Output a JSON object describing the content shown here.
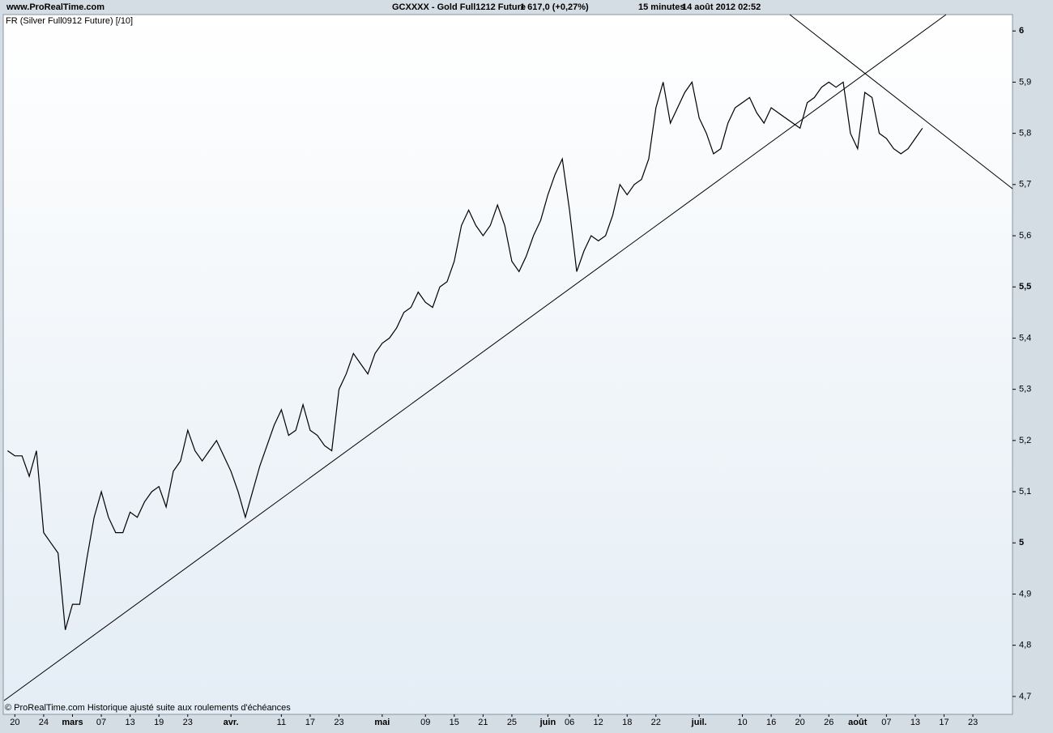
{
  "header": {
    "site": "www.ProRealTime.com",
    "instrument": "GCXXXX - Gold Full1212 Future",
    "quote": "1 617,0 (+0,27%)",
    "interval": "15 minutes",
    "datetime": "14 août 2012 02:52"
  },
  "chart_data": {
    "type": "line",
    "subtitle": "FR (Silver Full0912 Future) [/10]",
    "footnote": "© ProRealTime.com Historique ajusté suite aux roulements d'échéances",
    "categories": [
      null,
      "20",
      null,
      null,
      null,
      "24",
      null,
      null,
      null,
      "mars",
      null,
      null,
      null,
      "07",
      null,
      null,
      null,
      "13",
      null,
      null,
      null,
      "19",
      null,
      null,
      null,
      "23",
      null,
      null,
      null,
      null,
      null,
      "avr.",
      null,
      null,
      null,
      null,
      null,
      null,
      "11",
      null,
      null,
      null,
      "17",
      null,
      null,
      null,
      "23",
      null,
      null,
      null,
      null,
      null,
      "mai",
      null,
      null,
      null,
      null,
      null,
      "09",
      null,
      null,
      null,
      "15",
      null,
      null,
      null,
      "21",
      null,
      null,
      null,
      "25",
      null,
      null,
      null,
      null,
      "juin",
      null,
      null,
      "06",
      null,
      null,
      null,
      "12",
      null,
      null,
      null,
      "18",
      null,
      null,
      null,
      "22",
      null,
      null,
      null,
      null,
      null,
      "juil.",
      null,
      null,
      null,
      null,
      null,
      "10",
      null,
      null,
      null,
      "16",
      null,
      null,
      null,
      "20",
      null,
      null,
      null,
      "26",
      null,
      null,
      null,
      "août",
      null,
      null,
      null,
      "07",
      null,
      null,
      null,
      "13",
      null,
      null,
      null,
      "17",
      null,
      null,
      null,
      "23",
      null,
      null,
      null,
      null,
      null
    ],
    "series": [
      {
        "color": "#000000",
        "values": [
          5.18,
          5.17,
          5.17,
          5.13,
          5.18,
          5.02,
          5.0,
          4.98,
          4.83,
          4.88,
          4.88,
          4.97,
          5.05,
          5.1,
          5.05,
          5.02,
          5.02,
          5.06,
          5.05,
          5.08,
          5.1,
          5.11,
          5.07,
          5.14,
          5.16,
          5.22,
          5.18,
          5.16,
          5.18,
          5.2,
          5.17,
          5.14,
          5.1,
          5.05,
          5.1,
          5.15,
          5.19,
          5.23,
          5.26,
          5.21,
          5.22,
          5.27,
          5.22,
          5.21,
          5.19,
          5.18,
          5.3,
          5.33,
          5.37,
          5.35,
          5.33,
          5.37,
          5.39,
          5.4,
          5.42,
          5.45,
          5.46,
          5.49,
          5.47,
          5.46,
          5.5,
          5.51,
          5.55,
          5.62,
          5.65,
          5.62,
          5.6,
          5.62,
          5.66,
          5.62,
          5.55,
          5.53,
          5.56,
          5.6,
          5.63,
          5.68,
          5.72,
          5.75,
          5.65,
          5.53,
          5.57,
          5.6,
          5.59,
          5.6,
          5.64,
          5.7,
          5.68,
          5.7,
          5.71,
          5.75,
          5.85,
          5.9,
          5.82,
          5.85,
          5.88,
          5.9,
          5.83,
          5.8,
          5.76,
          5.77,
          5.82,
          5.85,
          5.86,
          5.87,
          5.84,
          5.82,
          5.85,
          5.84,
          5.83,
          5.82,
          5.81,
          5.86,
          5.87,
          5.89,
          5.9,
          5.89,
          5.9,
          5.8,
          5.77,
          5.88,
          5.87,
          5.8,
          5.79,
          5.77,
          5.76,
          5.77,
          5.79,
          5.81,
          null,
          null,
          null,
          null,
          null,
          null,
          null,
          null,
          null,
          null,
          null,
          null
        ]
      }
    ],
    "ylim": [
      4.665,
      6.032
    ],
    "yticks": [
      {
        "value": 4.7,
        "label": "4,7"
      },
      {
        "value": 4.8,
        "label": "4,8"
      },
      {
        "value": 4.9,
        "label": "4,9"
      },
      5,
      {
        "value": 5.1,
        "label": "5,1"
      },
      {
        "value": 5.2,
        "label": "5,2"
      },
      {
        "value": 5.3,
        "label": "5,3"
      },
      {
        "value": 5.4,
        "label": "5,4"
      },
      {
        "value": 5.5,
        "label": "5,5"
      },
      {
        "value": 5.6,
        "label": "5,6"
      },
      {
        "value": 5.7,
        "label": "5,7"
      },
      {
        "value": 5.8,
        "label": "5,8"
      },
      {
        "value": 5.9,
        "label": "5,9"
      },
      6
    ]
  }
}
